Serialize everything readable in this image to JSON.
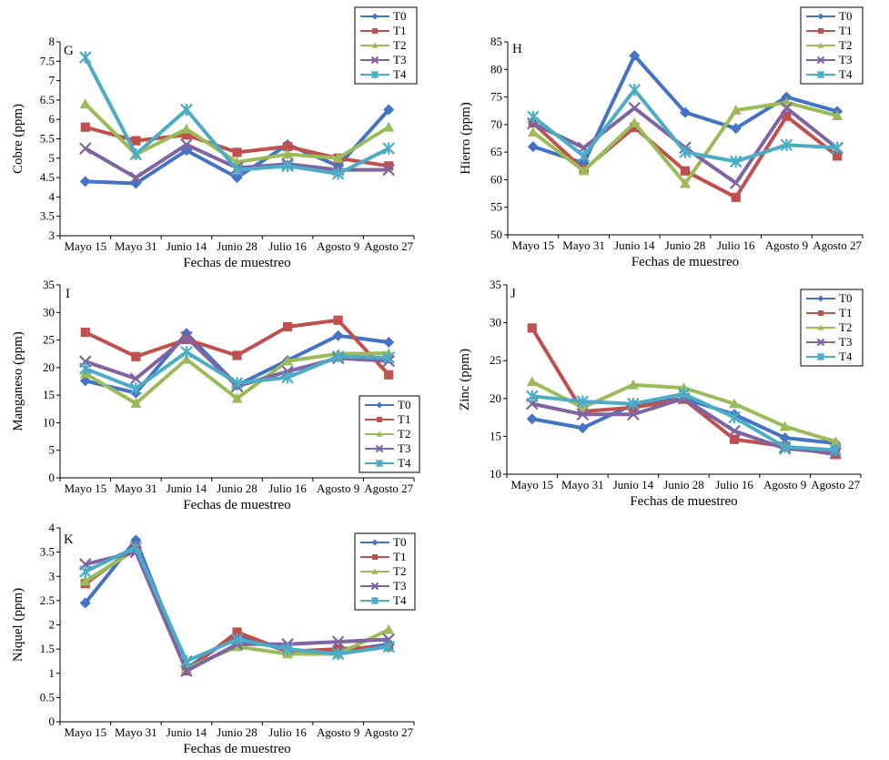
{
  "colors": {
    "T0": "#4472C4",
    "T1": "#C0504D",
    "T2": "#9BBB59",
    "T3": "#8064A2",
    "T4": "#4BACC6"
  },
  "chart_data": [
    {
      "panel": "G",
      "type": "line",
      "ylabel": "Cobre (ppm)",
      "xlabel": "Fechas de muestreo",
      "categories": [
        "Mayo 15",
        "Mayo 31",
        "Junio 14",
        "Junio 28",
        "Julio 16",
        "Agosto 9",
        "Agosto 27"
      ],
      "ylim": [
        3,
        8
      ],
      "yticks": [
        3,
        3.5,
        4,
        4.5,
        5,
        5.5,
        6,
        6.5,
        7,
        7.5,
        8
      ],
      "legend": "top-right",
      "series": [
        {
          "name": "T0",
          "values": [
            4.4,
            4.35,
            5.2,
            4.5,
            5.35,
            4.8,
            6.25
          ]
        },
        {
          "name": "T1",
          "values": [
            5.8,
            5.45,
            5.6,
            5.15,
            5.3,
            5.0,
            4.8
          ]
        },
        {
          "name": "T2",
          "values": [
            6.4,
            5.1,
            5.75,
            4.9,
            5.1,
            5.0,
            5.8
          ]
        },
        {
          "name": "T3",
          "values": [
            5.25,
            4.5,
            5.35,
            4.75,
            4.85,
            4.7,
            4.7
          ]
        },
        {
          "name": "T4",
          "values": [
            7.6,
            5.1,
            6.25,
            4.7,
            4.8,
            4.6,
            5.25
          ]
        }
      ]
    },
    {
      "panel": "H",
      "type": "line",
      "ylabel": "Hierro (ppm)",
      "xlabel": "Fechas de muestreo",
      "categories": [
        "Mayo 15",
        "Mayo 31",
        "Junio 14",
        "Junio 28",
        "Julio 16",
        "Agosto 9",
        "Agosto 27"
      ],
      "ylim": [
        50,
        85
      ],
      "yticks": [
        50,
        55,
        60,
        65,
        70,
        75,
        80,
        85
      ],
      "legend": "top-right",
      "series": [
        {
          "name": "T0",
          "values": [
            66,
            63,
            82.5,
            72.2,
            69.3,
            75,
            72.4
          ]
        },
        {
          "name": "T1",
          "values": [
            70.3,
            61.8,
            69.5,
            61.6,
            56.8,
            71.5,
            64.3
          ]
        },
        {
          "name": "T2",
          "values": [
            68.6,
            61.6,
            70.3,
            59.3,
            72.6,
            74,
            71.6
          ]
        },
        {
          "name": "T3",
          "values": [
            70.2,
            65.8,
            73,
            65.8,
            59.4,
            73,
            65.7
          ]
        },
        {
          "name": "T4",
          "values": [
            71.4,
            64.3,
            76.3,
            65,
            63.3,
            66.3,
            65.8
          ]
        }
      ]
    },
    {
      "panel": "I",
      "type": "line",
      "ylabel": "Manganeso (ppm)",
      "xlabel": "Fechas de muestreo",
      "categories": [
        "Mayo 15",
        "Mayo 31",
        "Junio 14",
        "Junio 28",
        "Julio 16",
        "Agosto 9",
        "Agosto 27"
      ],
      "ylim": [
        0,
        35
      ],
      "yticks": [
        0,
        5,
        10,
        15,
        20,
        25,
        30,
        35
      ],
      "legend": "bottom-right",
      "series": [
        {
          "name": "T0",
          "values": [
            17.6,
            15.4,
            26.2,
            16.8,
            21.3,
            25.8,
            24.6
          ]
        },
        {
          "name": "T1",
          "values": [
            26.4,
            22,
            25.1,
            22.2,
            27.4,
            28.6,
            18.7
          ]
        },
        {
          "name": "T2",
          "values": [
            18.9,
            13.5,
            21.5,
            14.4,
            21.2,
            22.5,
            22.6
          ]
        },
        {
          "name": "T3",
          "values": [
            21.1,
            18,
            25.5,
            16.6,
            19.3,
            21.7,
            21.2
          ]
        },
        {
          "name": "T4",
          "values": [
            19.8,
            16.2,
            22.8,
            17.2,
            18.2,
            22,
            21.8
          ]
        }
      ]
    },
    {
      "panel": "J",
      "type": "line",
      "ylabel": "Zinc (ppm)",
      "xlabel": "Fechas de muestreo",
      "categories": [
        "Mayo 15",
        "Mayo 31",
        "Junio 14",
        "Junio 28",
        "Julio 16",
        "Agosto 9",
        "Agosto 27"
      ],
      "ylim": [
        10,
        35
      ],
      "yticks": [
        10,
        15,
        20,
        25,
        30,
        35
      ],
      "legend": "top-right",
      "series": [
        {
          "name": "T0",
          "values": [
            17.3,
            16.1,
            19.2,
            20,
            17.9,
            14.8,
            14.1
          ]
        },
        {
          "name": "T1",
          "values": [
            29.3,
            18.3,
            18.8,
            19.9,
            14.6,
            13.7,
            12.6
          ]
        },
        {
          "name": "T2",
          "values": [
            22.2,
            18.8,
            21.8,
            21.4,
            19.3,
            16.3,
            14.3
          ]
        },
        {
          "name": "T3",
          "values": [
            19.3,
            17.9,
            17.9,
            20,
            15.7,
            13.4,
            12.8
          ]
        },
        {
          "name": "T4",
          "values": [
            20.3,
            19.6,
            19.3,
            20.6,
            17.5,
            13.6,
            13.2
          ]
        }
      ]
    },
    {
      "panel": "K",
      "type": "line",
      "ylabel": "Niquel (ppm)",
      "xlabel": "Fechas de muestreo",
      "categories": [
        "Mayo 15",
        "Mayo 31",
        "Junio 14",
        "Junio 28",
        "Julio 16",
        "Agosto 9",
        "Agosto 27"
      ],
      "ylim": [
        0,
        4
      ],
      "yticks": [
        0,
        0.5,
        1,
        1.5,
        2,
        2.5,
        3,
        3.5,
        4
      ],
      "legend": "top-right",
      "series": [
        {
          "name": "T0",
          "values": [
            2.45,
            3.75,
            1.1,
            1.8,
            1.45,
            1.45,
            1.6
          ]
        },
        {
          "name": "T1",
          "values": [
            2.85,
            3.6,
            1.05,
            1.85,
            1.45,
            1.5,
            1.55
          ]
        },
        {
          "name": "T2",
          "values": [
            2.9,
            3.55,
            1.1,
            1.55,
            1.4,
            1.4,
            1.9
          ]
        },
        {
          "name": "T3",
          "values": [
            3.25,
            3.5,
            1.05,
            1.6,
            1.6,
            1.65,
            1.7
          ]
        },
        {
          "name": "T4",
          "values": [
            3.1,
            3.6,
            1.25,
            1.7,
            1.5,
            1.4,
            1.55
          ]
        }
      ]
    }
  ]
}
